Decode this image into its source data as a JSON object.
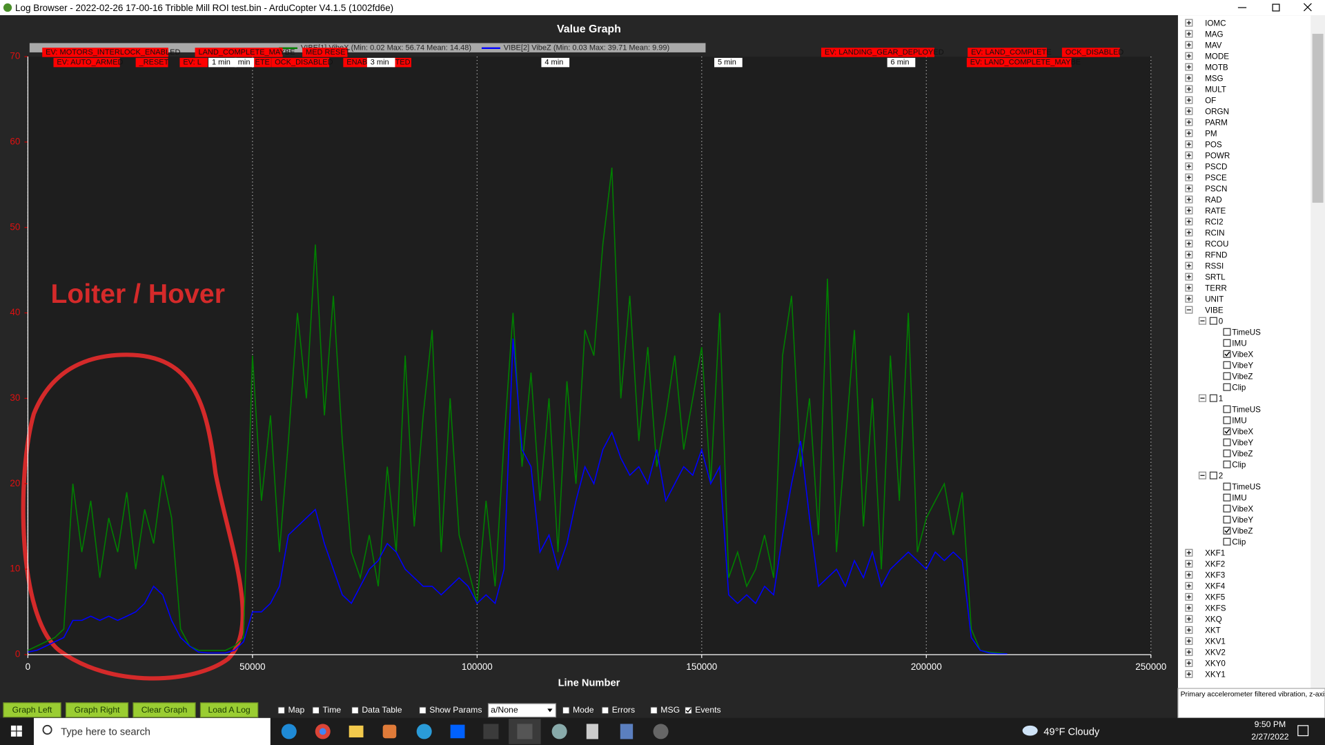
{
  "window_title": "Log Browser - 2022-02-26 17-00-16 Tribble Mill ROI test.bin - ArduCopter V4.1.5 (1002fd6e)",
  "chart_data": {
    "type": "line",
    "title": "Value Graph",
    "x_label": "Line Number",
    "annotation": "Loiter / Hover",
    "xlim": [
      0,
      250000
    ],
    "xticks": [
      0,
      50000,
      100000,
      150000,
      200000,
      250000
    ],
    "ylim": [
      0,
      70
    ],
    "yticks": [
      0,
      10,
      20,
      30,
      40,
      50,
      60,
      70
    ],
    "grid": true,
    "x": [
      0,
      2000,
      4000,
      6000,
      8000,
      10000,
      12000,
      14000,
      16000,
      18000,
      20000,
      22000,
      24000,
      26000,
      28000,
      30000,
      32000,
      34000,
      36000,
      38000,
      40000,
      42000,
      44000,
      46000,
      48000,
      50000,
      52000,
      54000,
      56000,
      58000,
      60000,
      62000,
      64000,
      66000,
      68000,
      70000,
      72000,
      74000,
      76000,
      78000,
      80000,
      82000,
      84000,
      86000,
      88000,
      90000,
      92000,
      94000,
      96000,
      98000,
      100000,
      102000,
      104000,
      106000,
      108000,
      110000,
      112000,
      114000,
      116000,
      118000,
      120000,
      122000,
      124000,
      126000,
      128000,
      130000,
      132000,
      134000,
      136000,
      138000,
      140000,
      142000,
      144000,
      146000,
      148000,
      150000,
      152000,
      154000,
      156000,
      158000,
      160000,
      162000,
      164000,
      166000,
      168000,
      170000,
      172000,
      174000,
      176000,
      178000,
      180000,
      182000,
      184000,
      186000,
      188000,
      190000,
      192000,
      194000,
      196000,
      198000,
      200000,
      202000,
      204000,
      206000,
      208000,
      210000,
      212000,
      214000,
      216000,
      218000
    ],
    "series": [
      {
        "name": "VIBE[1] VibeX (Min: 0.02 Max: 56.74 Mean: 14.48)",
        "color": "#008000",
        "values": [
          0.5,
          1,
          1.5,
          2,
          3,
          20,
          12,
          18,
          9,
          16,
          12,
          19,
          10,
          17,
          13,
          21,
          16,
          3,
          1,
          0.5,
          0.5,
          0.5,
          0.5,
          1,
          2,
          35,
          18,
          28,
          12,
          25,
          40,
          30,
          48,
          28,
          42,
          25,
          12,
          9,
          14,
          8,
          22,
          12,
          35,
          15,
          28,
          38,
          12,
          30,
          14,
          10,
          6,
          18,
          8,
          25,
          40,
          22,
          33,
          18,
          30,
          12,
          32,
          20,
          38,
          35,
          48,
          57,
          30,
          42,
          25,
          36,
          22,
          28,
          35,
          24,
          30,
          36,
          20,
          40,
          9,
          12,
          8,
          10,
          14,
          9,
          35,
          42,
          22,
          30,
          14,
          44,
          12,
          25,
          38,
          15,
          30,
          10,
          35,
          18,
          40,
          12,
          16,
          18,
          20,
          14,
          19,
          3,
          0.5,
          0.3,
          0.2,
          0.1
        ]
      },
      {
        "name": "VIBE[2] VibeZ (Min: 0.03 Max: 39.71 Mean: 9.99)",
        "color": "#0000ff",
        "values": [
          0.3,
          0.5,
          1,
          1.5,
          2,
          4,
          4,
          4.5,
          4,
          4.5,
          4,
          4.5,
          5,
          6,
          8,
          7,
          4,
          2,
          1,
          0.3,
          0.2,
          0.2,
          0.2,
          0.5,
          1.5,
          5,
          5,
          6,
          8,
          14,
          15,
          16,
          17,
          13,
          10,
          7,
          6,
          8,
          10,
          11,
          13,
          12,
          10,
          9,
          8,
          8,
          7,
          8,
          9,
          8,
          6,
          7,
          6,
          10,
          37,
          24,
          22,
          12,
          14,
          10,
          13,
          18,
          22,
          20,
          24,
          26,
          23,
          21,
          22,
          20,
          24,
          18,
          20,
          22,
          21,
          24,
          20,
          22,
          7,
          6,
          7,
          6,
          8,
          7,
          14,
          20,
          25,
          16,
          8,
          9,
          10,
          8,
          11,
          9,
          12,
          8,
          10,
          11,
          12,
          11,
          10,
          12,
          11,
          12,
          11,
          2,
          0.5,
          0.2,
          0.1,
          0.1
        ]
      }
    ],
    "events_upper": [
      {
        "text": "EV: MOTORS_INTERLOCK_ENABLED",
        "x": 3200
      },
      {
        "text": "LAND_COMPLETE_MAYBE",
        "x": 37200
      },
      {
        "text": "MED RESET",
        "x": 61100
      },
      {
        "text": "EV: LANDING_GEAR_DEPLOYED",
        "x": 176600
      },
      {
        "text": "EV: LAND_COMPLETE",
        "x": 209200
      },
      {
        "text": "OCK_DISABLED",
        "x": 230200
      }
    ],
    "events_lower": [
      {
        "text": "EV: AUTO_ARMED",
        "x": 5700
      },
      {
        "text": "_RESET",
        "x": 24000
      },
      {
        "text": "EV: L",
        "x": 33800
      },
      {
        "text": "ETE",
        "x": 49800
      },
      {
        "text": "OCK_DISABLED",
        "x": 54200
      },
      {
        "text": "ENAB",
        "x": 70200
      },
      {
        "text": "TED",
        "x": 81000
      },
      {
        "text": "EV: LAND_COMPLETE_MAYBE",
        "x": 209000
      }
    ],
    "time_marks": [
      {
        "text": "1 min",
        "x": 40200
      },
      {
        "text": "min",
        "x": 46000
      },
      {
        "text": "3 min",
        "x": 75500
      },
      {
        "text": "4 min",
        "x": 114300
      },
      {
        "text": "5 min",
        "x": 152800
      },
      {
        "text": "6 min",
        "x": 191300
      }
    ]
  },
  "tree": {
    "top_items": [
      "IOMC",
      "MAG",
      "MAV",
      "MODE",
      "MOTB",
      "MSG",
      "MULT",
      "OF",
      "ORGN",
      "PARM",
      "PM",
      "POS",
      "POWR",
      "PSCD",
      "PSCE",
      "PSCN",
      "RAD",
      "RATE",
      "RCI2",
      "RCIN",
      "RCOU",
      "RFND",
      "RSSI",
      "SRTL",
      "TERR",
      "UNIT"
    ],
    "expanded": {
      "label": "VIBE",
      "groups": [
        {
          "label": "0",
          "fields": [
            {
              "name": "TimeUS",
              "checked": false
            },
            {
              "name": "IMU",
              "checked": false
            },
            {
              "name": "VibeX",
              "checked": true
            },
            {
              "name": "VibeY",
              "checked": false
            },
            {
              "name": "VibeZ",
              "checked": false
            },
            {
              "name": "Clip",
              "checked": false
            }
          ]
        },
        {
          "label": "1",
          "fields": [
            {
              "name": "TimeUS",
              "checked": false
            },
            {
              "name": "IMU",
              "checked": false
            },
            {
              "name": "VibeX",
              "checked": true
            },
            {
              "name": "VibeY",
              "checked": false
            },
            {
              "name": "VibeZ",
              "checked": false
            },
            {
              "name": "Clip",
              "checked": false
            }
          ]
        },
        {
          "label": "2",
          "fields": [
            {
              "name": "TimeUS",
              "checked": false
            },
            {
              "name": "IMU",
              "checked": false
            },
            {
              "name": "VibeX",
              "checked": false
            },
            {
              "name": "VibeY",
              "checked": false
            },
            {
              "name": "VibeZ",
              "checked": true
            },
            {
              "name": "Clip",
              "checked": false
            }
          ]
        }
      ]
    },
    "bottom_items": [
      "XKF1",
      "XKF2",
      "XKF3",
      "XKF4",
      "XKF5",
      "XKFS",
      "XKQ",
      "XKT",
      "XKV1",
      "XKV2",
      "XKY0",
      "XKY1"
    ]
  },
  "status_text": "Primary accelerometer filtered vibration, z-axis",
  "buttons": [
    "Graph Left",
    "Graph Right",
    "Clear Graph",
    "Load A Log"
  ],
  "options_left": [
    {
      "label": "Map",
      "checked": false
    },
    {
      "label": "Time",
      "checked": false
    },
    {
      "label": "Data Table",
      "checked": false
    },
    {
      "label": "Show Params",
      "checked": false
    }
  ],
  "combo": "a/None",
  "options_right": [
    {
      "label": "Mode",
      "checked": false
    },
    {
      "label": "Errors",
      "checked": false
    },
    {
      "label": "MSG",
      "checked": false
    },
    {
      "label": "Events",
      "checked": true
    }
  ],
  "taskbar": {
    "search": "Type here to search",
    "weather": "49°F  Cloudy",
    "time": "9:50 PM",
    "date": "2/27/2022"
  }
}
